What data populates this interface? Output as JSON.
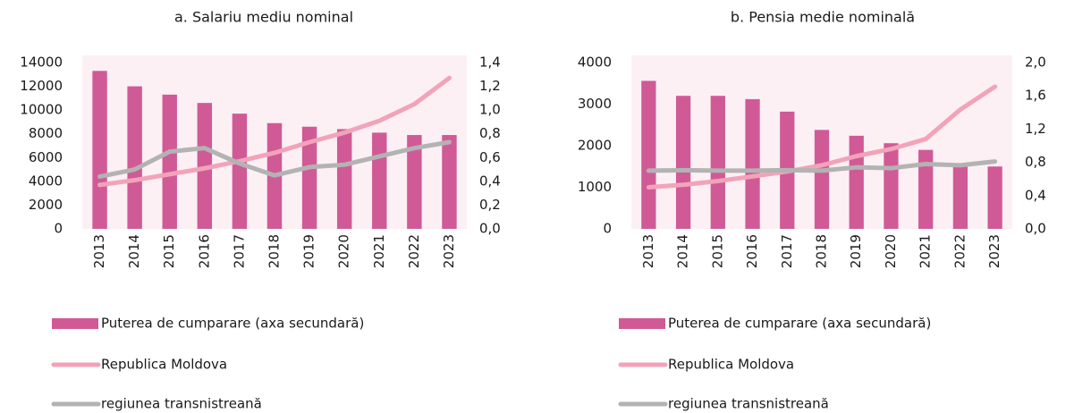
{
  "chart_data": [
    {
      "type": "combo",
      "title": "a. Salariu mediu nominal",
      "categories": [
        "2013",
        "2014",
        "2015",
        "2016",
        "2017",
        "2018",
        "2019",
        "2020",
        "2021",
        "2022",
        "2023"
      ],
      "series": [
        {
          "name": "Puterea de cumparare (axa secundară)",
          "type": "bar",
          "axis": "y2",
          "color": "#d05a96",
          "values": [
            1.33,
            1.2,
            1.13,
            1.06,
            0.97,
            0.89,
            0.86,
            0.84,
            0.81,
            0.79,
            0.79
          ]
        },
        {
          "name": "Republica Moldova",
          "type": "line",
          "color": "#f2a3ba",
          "values": [
            3700,
            4100,
            4600,
            5100,
            5700,
            6400,
            7300,
            8100,
            9100,
            10500,
            12700
          ]
        },
        {
          "name": "regiunea transnistreană",
          "type": "line",
          "color": "#b3b3b3",
          "values": [
            4400,
            5000,
            6500,
            6800,
            5500,
            4500,
            5200,
            5400,
            6100,
            6800,
            7300
          ]
        }
      ],
      "ylim": [
        0,
        14000
      ],
      "yticks": [
        0,
        2000,
        4000,
        6000,
        8000,
        10000,
        12000,
        14000
      ],
      "y2lim": [
        0,
        1.4
      ],
      "y2ticks": [
        {
          "value": 0,
          "label": "0,0"
        },
        {
          "value": 0.2,
          "label": "0,2"
        },
        {
          "value": 0.4,
          "label": "0,4"
        },
        {
          "value": 0.6,
          "label": "0,6"
        },
        {
          "value": 0.8,
          "label": "0,8"
        },
        {
          "value": 1.0,
          "label": "1,0"
        },
        {
          "value": 1.2,
          "label": "1,2"
        },
        {
          "value": 1.4,
          "label": "1,4"
        }
      ],
      "grid": false
    },
    {
      "type": "combo",
      "title": "b. Pensia medie nominală",
      "categories": [
        "2013",
        "2014",
        "2015",
        "2016",
        "2017",
        "2018",
        "2019",
        "2020",
        "2021",
        "2022",
        "2023"
      ],
      "series": [
        {
          "name": "Puterea de cumparare (axa secundară)",
          "type": "bar",
          "axis": "y2",
          "color": "#d05a96",
          "values": [
            1.78,
            1.6,
            1.6,
            1.56,
            1.41,
            1.19,
            1.12,
            1.03,
            0.95,
            0.77,
            0.75
          ]
        },
        {
          "name": "Republica Moldova",
          "type": "line",
          "color": "#f2a3ba",
          "values": [
            1000,
            1060,
            1150,
            1260,
            1380,
            1530,
            1750,
            1920,
            2160,
            2870,
            3420
          ]
        },
        {
          "name": "regiunea transnistreană",
          "type": "line",
          "color": "#b3b3b3",
          "values": [
            1400,
            1410,
            1400,
            1400,
            1410,
            1400,
            1480,
            1460,
            1560,
            1530,
            1620
          ]
        }
      ],
      "ylim": [
        0,
        4000
      ],
      "yticks": [
        0,
        1000,
        2000,
        3000,
        4000
      ],
      "y2lim": [
        0,
        2.0
      ],
      "y2ticks": [
        {
          "value": 0,
          "label": "0,0"
        },
        {
          "value": 0.4,
          "label": "0,4"
        },
        {
          "value": 0.8,
          "label": "0,8"
        },
        {
          "value": 1.2,
          "label": "1,2"
        },
        {
          "value": 1.6,
          "label": "1,6"
        },
        {
          "value": 2.0,
          "label": "2,0"
        }
      ],
      "grid": false
    }
  ]
}
